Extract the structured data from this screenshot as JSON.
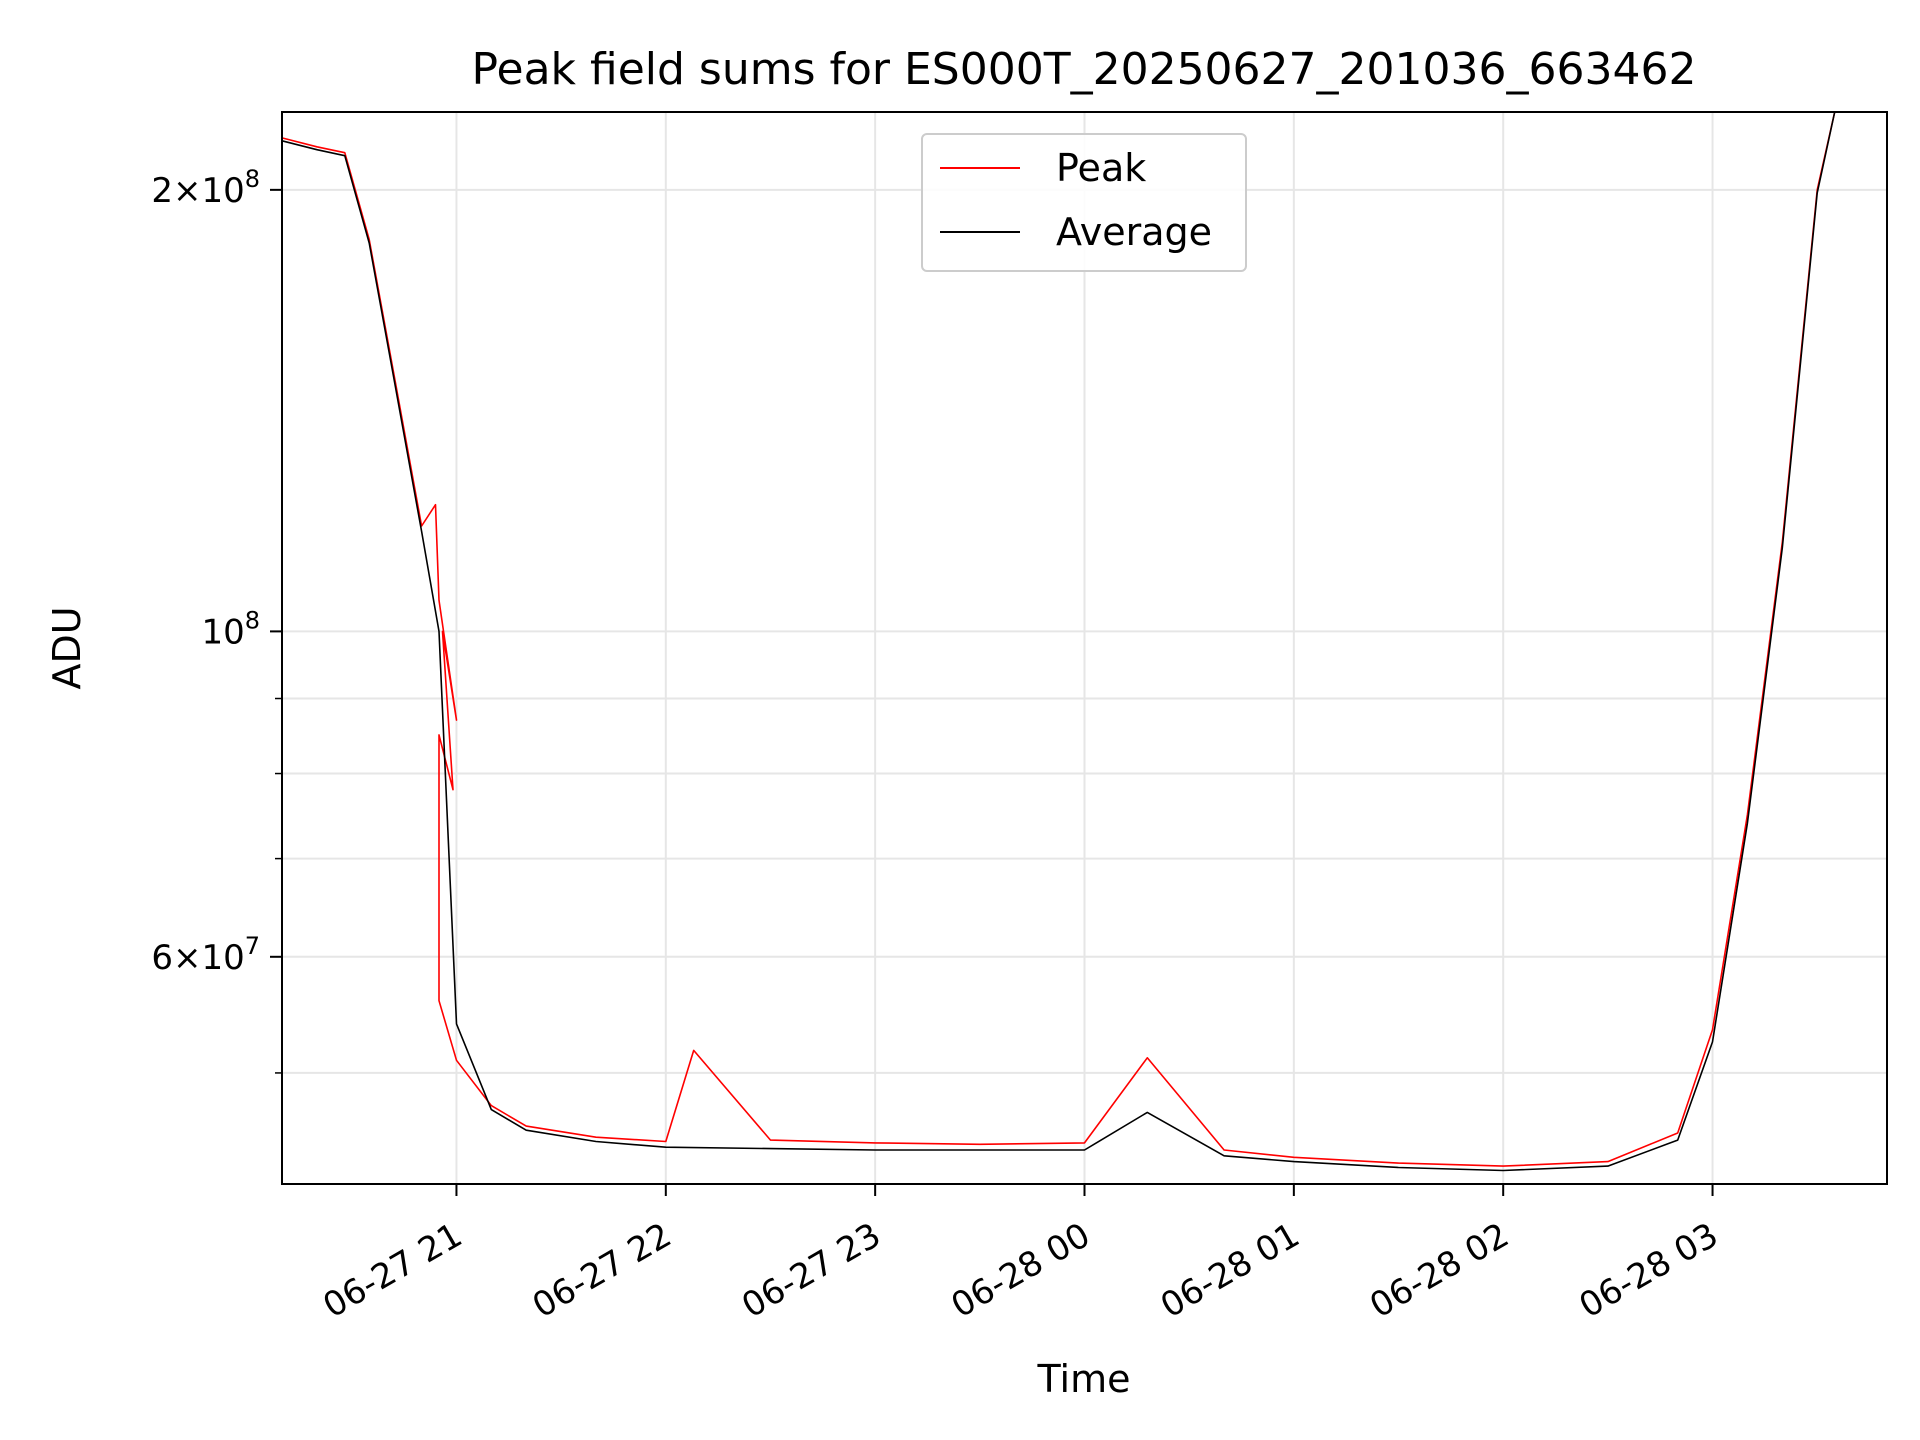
{
  "chart_data": {
    "type": "line",
    "title": "Peak field sums for ES000T_20250627_201036_663462",
    "xlabel": "Time",
    "ylabel": "ADU",
    "yscale": "log",
    "grid": true,
    "legend_position": "top-center",
    "xlim": [
      "2025-06-27 20:10",
      "2025-06-28 03:50"
    ],
    "ylim": [
      42000000,
      226000000
    ],
    "x_ticks": [
      {
        "t": "2025-06-27 21:00",
        "label": "06-27 21"
      },
      {
        "t": "2025-06-27 22:00",
        "label": "06-27 22"
      },
      {
        "t": "2025-06-27 23:00",
        "label": "06-27 23"
      },
      {
        "t": "2025-06-28 00:00",
        "label": "06-28 00"
      },
      {
        "t": "2025-06-28 01:00",
        "label": "06-28 01"
      },
      {
        "t": "2025-06-28 02:00",
        "label": "06-28 02"
      },
      {
        "t": "2025-06-28 03:00",
        "label": "06-28 03"
      }
    ],
    "y_ticks": [
      {
        "value": 200000000,
        "mant": "2×10",
        "exp": "8"
      },
      {
        "value": 100000000,
        "mant": "10",
        "exp": "8"
      },
      {
        "value": 60000000,
        "mant": "6×10",
        "exp": "7"
      }
    ],
    "y_minor_ticks": [
      50000000,
      70000000,
      80000000,
      90000000
    ],
    "series": [
      {
        "name": "Peak",
        "color": "#ff0000",
        "points": [
          [
            "2025-06-27 20:10",
            217000000
          ],
          [
            "2025-06-27 20:20",
            214000000
          ],
          [
            "2025-06-27 20:28",
            212000000
          ],
          [
            "2025-06-27 20:35",
            185000000
          ],
          [
            "2025-06-27 20:42",
            150000000
          ],
          [
            "2025-06-27 20:50",
            118000000
          ],
          [
            "2025-06-27 20:54",
            122000000
          ],
          [
            "2025-06-27 20:55",
            105000000
          ],
          [
            "2025-06-27 21:00",
            87000000
          ],
          [
            "2025-06-27 20:56",
            100000000
          ],
          [
            "2025-06-27 20:59",
            78000000
          ],
          [
            "2025-06-27 20:55",
            85000000
          ],
          [
            "2025-06-27 20:55",
            77000000
          ],
          [
            "2025-06-27 20:55",
            66000000
          ],
          [
            "2025-06-27 20:55",
            56000000
          ],
          [
            "2025-06-27 21:00",
            51000000
          ],
          [
            "2025-06-27 21:10",
            47500000
          ],
          [
            "2025-06-27 21:20",
            46000000
          ],
          [
            "2025-06-27 21:40",
            45200000
          ],
          [
            "2025-06-27 22:00",
            44900000
          ],
          [
            "2025-06-27 22:08",
            51800000
          ],
          [
            "2025-06-27 22:30",
            45000000
          ],
          [
            "2025-06-27 23:00",
            44800000
          ],
          [
            "2025-06-27 23:30",
            44700000
          ],
          [
            "2025-06-28 00:00",
            44800000
          ],
          [
            "2025-06-28 00:18",
            51200000
          ],
          [
            "2025-06-28 00:40",
            44300000
          ],
          [
            "2025-06-28 01:00",
            43800000
          ],
          [
            "2025-06-28 01:30",
            43400000
          ],
          [
            "2025-06-28 02:00",
            43200000
          ],
          [
            "2025-06-28 02:30",
            43500000
          ],
          [
            "2025-06-28 02:50",
            45500000
          ],
          [
            "2025-06-28 03:00",
            53500000
          ],
          [
            "2025-06-28 03:10",
            75000000
          ],
          [
            "2025-06-28 03:20",
            115000000
          ],
          [
            "2025-06-28 03:30",
            200000000
          ],
          [
            "2025-06-28 03:35",
            226000000
          ],
          [
            "2025-06-28 03:50",
            226000000
          ]
        ]
      },
      {
        "name": "Average",
        "color": "#000000",
        "points": [
          [
            "2025-06-27 20:10",
            216000000
          ],
          [
            "2025-06-27 20:20",
            213000000
          ],
          [
            "2025-06-27 20:28",
            211000000
          ],
          [
            "2025-06-27 20:35",
            184000000
          ],
          [
            "2025-06-27 20:42",
            149000000
          ],
          [
            "2025-06-27 20:50",
            117000000
          ],
          [
            "2025-06-27 20:55",
            100000000
          ],
          [
            "2025-06-27 21:00",
            54000000
          ],
          [
            "2025-06-27 21:10",
            47200000
          ],
          [
            "2025-06-27 21:20",
            45700000
          ],
          [
            "2025-06-27 21:40",
            44900000
          ],
          [
            "2025-06-27 22:00",
            44500000
          ],
          [
            "2025-06-27 22:30",
            44400000
          ],
          [
            "2025-06-27 23:00",
            44300000
          ],
          [
            "2025-06-27 23:30",
            44300000
          ],
          [
            "2025-06-28 00:00",
            44300000
          ],
          [
            "2025-06-28 00:18",
            47000000
          ],
          [
            "2025-06-28 00:40",
            43900000
          ],
          [
            "2025-06-28 01:00",
            43500000
          ],
          [
            "2025-06-28 01:30",
            43100000
          ],
          [
            "2025-06-28 02:00",
            42900000
          ],
          [
            "2025-06-28 02:30",
            43200000
          ],
          [
            "2025-06-28 02:50",
            45000000
          ],
          [
            "2025-06-28 03:00",
            52500000
          ],
          [
            "2025-06-28 03:10",
            74000000
          ],
          [
            "2025-06-28 03:20",
            114000000
          ],
          [
            "2025-06-28 03:30",
            199000000
          ],
          [
            "2025-06-28 03:35",
            226000000
          ],
          [
            "2025-06-28 03:50",
            226000000
          ]
        ]
      }
    ]
  }
}
